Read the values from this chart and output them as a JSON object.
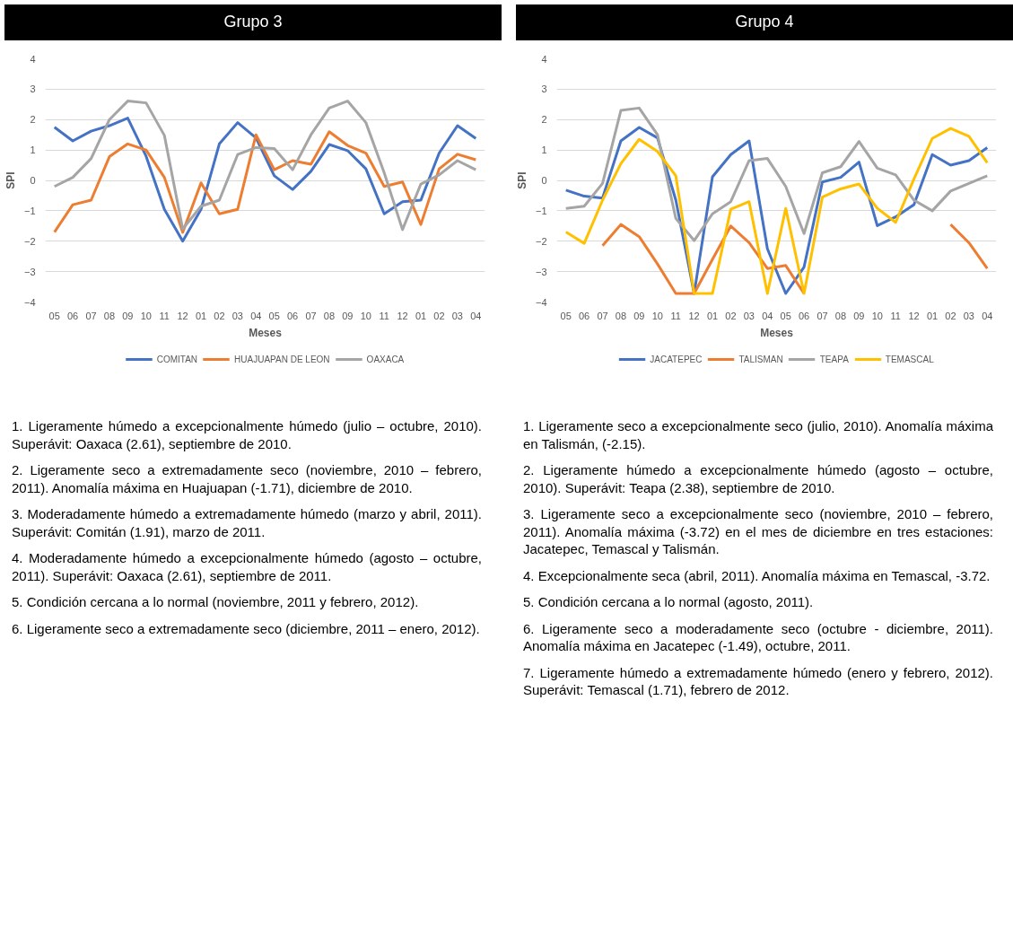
{
  "chart_data": [
    {
      "type": "line",
      "title": "Grupo 3",
      "xlabel": "Meses",
      "ylabel": "SPI",
      "categories": [
        "05",
        "06",
        "07",
        "08",
        "09",
        "10",
        "11",
        "12",
        "01",
        "02",
        "03",
        "04",
        "05",
        "06",
        "07",
        "08",
        "09",
        "10",
        "11",
        "12",
        "01",
        "02",
        "03",
        "04"
      ],
      "series": [
        {
          "name": "COMITAN",
          "color": "#4472c4",
          "values": [
            1.75,
            1.3,
            1.62,
            1.8,
            2.05,
            0.8,
            -0.95,
            -2.0,
            -0.95,
            1.2,
            1.9,
            1.4,
            0.15,
            -0.3,
            0.3,
            1.18,
            0.98,
            0.38,
            -1.1,
            -0.7,
            -0.65,
            0.9,
            1.8,
            1.38
          ]
        },
        {
          "name": "HUAJUAPAN DE LEON",
          "color": "#ed7d31",
          "values": [
            -1.7,
            -0.8,
            -0.65,
            0.78,
            1.2,
            1.0,
            0.1,
            -1.71,
            -0.08,
            -1.1,
            -0.95,
            1.5,
            0.35,
            0.65,
            0.53,
            1.6,
            1.15,
            0.9,
            -0.2,
            -0.05,
            -1.45,
            0.38,
            0.86,
            0.68
          ]
        },
        {
          "name": "OAXACA",
          "color": "#a5a5a5",
          "values": [
            -0.2,
            0.1,
            0.72,
            2.0,
            2.61,
            2.55,
            1.48,
            -1.6,
            -0.85,
            -0.65,
            0.85,
            1.08,
            1.05,
            0.35,
            1.5,
            2.38,
            2.61,
            1.9,
            0.25,
            -1.62,
            -0.12,
            0.18,
            0.65,
            0.35
          ]
        }
      ],
      "ylim": [
        -4,
        4
      ],
      "yticks": [
        -4,
        -3,
        -2,
        -1,
        0,
        1,
        2,
        3,
        4
      ],
      "grid": "y",
      "legend": "bottom",
      "annotations": [
        "1. Ligeramente húmedo a excepcionalmente húmedo (julio – octubre, 2010). Superávit: Oaxaca (2.61), septiembre de 2010.",
        "2. Ligeramente seco a extremadamente seco (noviembre, 2010 – febrero, 2011). Anomalía máxima en Huajuapan (-1.71), diciembre de 2010.",
        "3. Moderadamente húmedo a extremadamente húmedo (marzo y abril, 2011). Superávit: Comitán (1.91), marzo de 2011.",
        "4. Moderadamente húmedo a excepcionalmente húmedo (agosto – octubre, 2011). Superávit: Oaxaca (2.61), septiembre de 2011.",
        "5. Condición cercana a lo normal (noviembre, 2011 y febrero, 2012).",
        "6. Ligeramente seco a extremadamente seco (diciembre, 2011 – enero, 2012)."
      ]
    },
    {
      "type": "line",
      "title": "Grupo 4",
      "xlabel": "Meses",
      "ylabel": "SPI",
      "categories": [
        "05",
        "06",
        "07",
        "08",
        "09",
        "10",
        "11",
        "12",
        "01",
        "02",
        "03",
        "04",
        "05",
        "06",
        "07",
        "08",
        "09",
        "10",
        "11",
        "12",
        "01",
        "02",
        "03",
        "04"
      ],
      "series": [
        {
          "name": "JACATEPEC",
          "color": "#4472c4",
          "values": [
            -0.32,
            -0.52,
            -0.58,
            1.3,
            1.74,
            1.4,
            -0.65,
            -3.72,
            0.12,
            0.85,
            1.3,
            -2.25,
            -3.72,
            -2.85,
            -0.05,
            0.1,
            0.6,
            -1.49,
            -1.2,
            -0.8,
            0.85,
            0.5,
            0.65,
            1.08
          ]
        },
        {
          "name": "TALISMAN",
          "color": "#ed7d31",
          "values": [
            null,
            null,
            -2.15,
            -1.45,
            -1.85,
            -2.75,
            -3.72,
            -3.72,
            -2.6,
            -1.5,
            -2.05,
            -2.9,
            -2.8,
            -3.72,
            null,
            null,
            null,
            null,
            null,
            null,
            null,
            -1.45,
            -2.05,
            -2.9
          ]
        },
        {
          "name": "TEAPA",
          "color": "#a5a5a5",
          "values": [
            -0.92,
            -0.85,
            -0.1,
            2.3,
            2.38,
            1.5,
            -1.25,
            -1.98,
            -1.1,
            -0.7,
            0.65,
            0.72,
            -0.2,
            -1.75,
            0.25,
            0.45,
            1.28,
            0.4,
            0.18,
            -0.65,
            -1.0,
            -0.35,
            -0.1,
            0.15
          ]
        },
        {
          "name": "TEMASCAL",
          "color": "#ffc000",
          "values": [
            -1.7,
            -2.07,
            -0.65,
            0.55,
            1.35,
            0.95,
            0.15,
            -3.72,
            -3.72,
            -0.95,
            -0.7,
            -3.72,
            -0.92,
            -3.72,
            -0.55,
            -0.28,
            -0.12,
            -0.92,
            -1.38,
            0.05,
            1.38,
            1.71,
            1.45,
            0.58
          ]
        }
      ],
      "ylim": [
        -4,
        4
      ],
      "yticks": [
        -4,
        -3,
        -2,
        -1,
        0,
        1,
        2,
        3,
        4
      ],
      "grid": "y",
      "legend": "bottom",
      "annotations": [
        "1. Ligeramente seco a excepcionalmente seco (julio, 2010). Anomalía máxima en Talismán, (-2.15).",
        "2. Ligeramente húmedo a excepcionalmente húmedo (agosto – octubre, 2010). Superávit: Teapa (2.38), septiembre de 2010.",
        "3. Ligeramente seco a excepcionalmente seco (noviembre, 2010 – febrero, 2011). Anomalía máxima (-3.72) en el mes de diciembre en tres estaciones: Jacatepec, Temascal y Talismán.",
        "4. Excepcionalmente seca (abril, 2011). Anomalía máxima en Temascal, -3.72.",
        "5. Condición cercana a lo normal (agosto, 2011).",
        "6. Ligeramente seco a moderadamente seco (octubre - diciembre, 2011). Anomalía máxima en Jacatepec (-1.49), octubre, 2011.",
        "7. Ligeramente húmedo a extremadamente húmedo (enero y febrero, 2012). Superávit: Temascal (1.71), febrero de 2012."
      ]
    }
  ]
}
